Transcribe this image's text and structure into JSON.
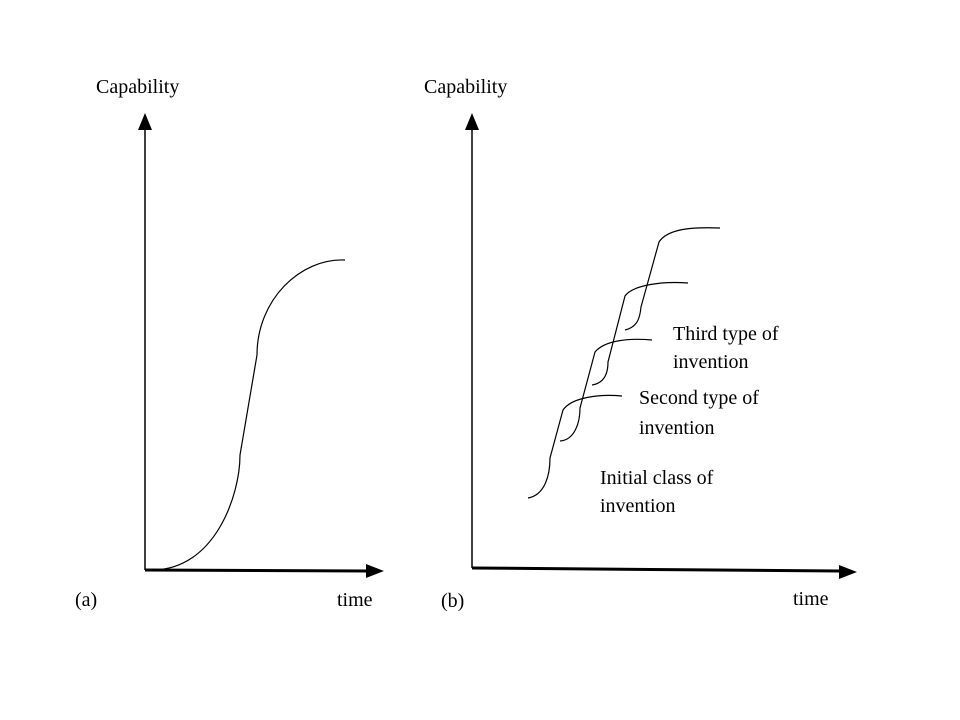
{
  "panel_a": {
    "y_axis_label": "Capability",
    "x_axis_label": "time",
    "panel_label": "(a)"
  },
  "panel_b": {
    "y_axis_label": "Capability",
    "x_axis_label": "time",
    "panel_label": "(b)",
    "curve_labels": {
      "third": [
        "Third type of",
        "invention"
      ],
      "second": [
        "Second type of",
        "invention"
      ],
      "initial": [
        "Initial class of",
        "invention"
      ]
    }
  }
}
